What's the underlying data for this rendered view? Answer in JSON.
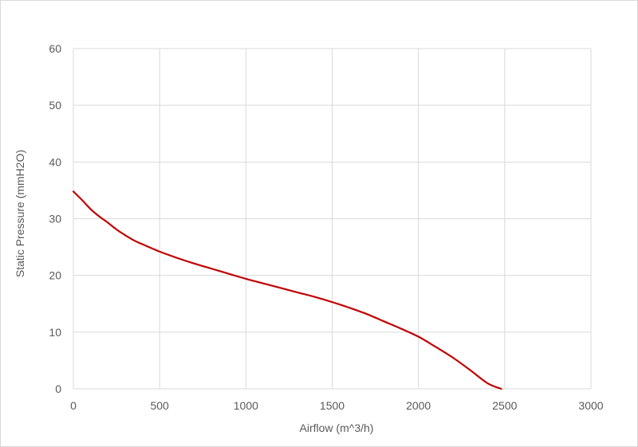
{
  "chart_data": {
    "type": "line",
    "title": "",
    "xlabel": "Airflow (m^3/h)",
    "ylabel": "Static Pressure (mmH2O)",
    "xlim": [
      0,
      3000
    ],
    "ylim": [
      0,
      60
    ],
    "xticks": [
      "0",
      "500",
      "1000",
      "1500",
      "2000",
      "2500",
      "3000"
    ],
    "yticks": [
      "0",
      "10",
      "20",
      "30",
      "40",
      "50",
      "60"
    ],
    "grid": true,
    "legend": "none",
    "series": [
      {
        "color": "#c00000",
        "x": [
          0,
          50,
          100,
          150,
          200,
          250,
          300,
          350,
          400,
          500,
          600,
          700,
          800,
          900,
          1000,
          1100,
          1200,
          1300,
          1400,
          1500,
          1600,
          1700,
          1800,
          1900,
          2000,
          2100,
          2200,
          2300,
          2400,
          2480
        ],
        "y": [
          34.8,
          33.3,
          31.7,
          30.4,
          29.3,
          28.1,
          27.1,
          26.2,
          25.5,
          24.2,
          23.1,
          22.1,
          21.2,
          20.3,
          19.4,
          18.6,
          17.8,
          17.0,
          16.2,
          15.3,
          14.3,
          13.2,
          11.9,
          10.6,
          9.2,
          7.4,
          5.5,
          3.3,
          1.0,
          0.0
        ]
      }
    ]
  }
}
